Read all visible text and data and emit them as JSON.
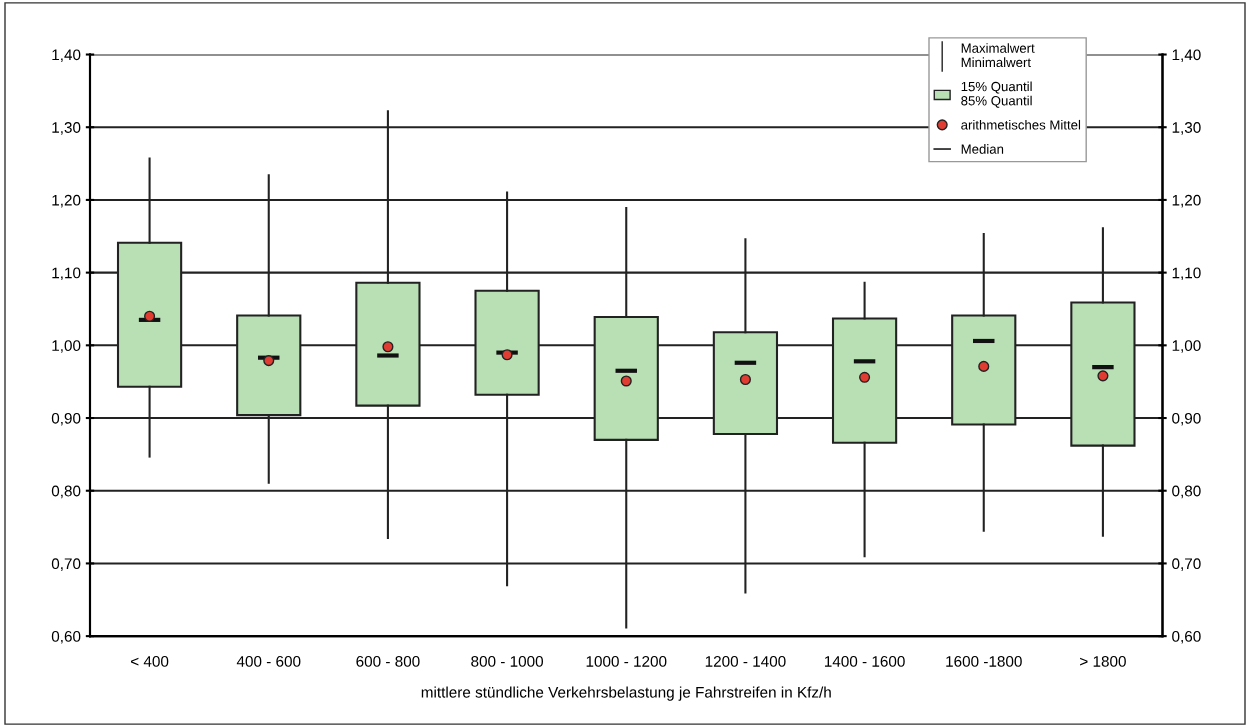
{
  "chart_data": {
    "type": "box",
    "xlabel": "mittlere stündliche Verkehrsbelastung je Fahrstreifen in Kfz/h",
    "categories": [
      "< 400",
      "400 - 600",
      "600 - 800",
      "800 - 1000",
      "1000 - 1200",
      "1200 - 1400",
      "1400 - 1600",
      "1600 -1800",
      "> 1800"
    ],
    "series": [
      {
        "color": "#b9dfb4",
        "boxes": [
          {
            "low": 0.847,
            "q1": 0.943,
            "median": 1.035,
            "q3": 1.141,
            "high": 1.257,
            "mean": 1.04
          },
          {
            "low": 0.811,
            "q1": 0.904,
            "median": 0.983,
            "q3": 1.041,
            "high": 1.234,
            "mean": 0.979
          },
          {
            "low": 0.735,
            "q1": 0.917,
            "median": 0.986,
            "q3": 1.086,
            "high": 1.322,
            "mean": 0.998
          },
          {
            "low": 0.67,
            "q1": 0.932,
            "median": 0.99,
            "q3": 1.075,
            "high": 1.21,
            "mean": 0.987
          },
          {
            "low": 0.612,
            "q1": 0.87,
            "median": 0.965,
            "q3": 1.039,
            "high": 1.189,
            "mean": 0.951
          },
          {
            "low": 0.66,
            "q1": 0.878,
            "median": 0.976,
            "q3": 1.018,
            "high": 1.146,
            "mean": 0.953
          },
          {
            "low": 0.71,
            "q1": 0.866,
            "median": 0.978,
            "q3": 1.037,
            "high": 1.086,
            "mean": 0.956
          },
          {
            "low": 0.745,
            "q1": 0.891,
            "median": 1.006,
            "q3": 1.041,
            "high": 1.153,
            "mean": 0.971
          },
          {
            "low": 0.738,
            "q1": 0.862,
            "median": 0.97,
            "q3": 1.059,
            "high": 1.161,
            "mean": 0.958
          }
        ]
      }
    ],
    "annotations": [
      "Maximalwert\nMinimalwert",
      "15% Quantil\n85% Quantil",
      "arithmetisches Mittel",
      "Median"
    ],
    "ylim": [
      0.6,
      1.4
    ],
    "yticks": [
      {
        "value": 0.6,
        "label": "0,60"
      },
      {
        "value": 0.7,
        "label": "0,70"
      },
      {
        "value": 0.8,
        "label": "0,80"
      },
      {
        "value": 0.9,
        "label": "0,90"
      },
      {
        "value": 1.0,
        "label": "1,00"
      },
      {
        "value": 1.1,
        "label": "1,10"
      },
      {
        "value": 1.2,
        "label": "1,20"
      },
      {
        "value": 1.3,
        "label": "1,30"
      },
      {
        "value": 1.4,
        "label": "1,40"
      }
    ],
    "y2lim": [
      0.6,
      1.4
    ],
    "y2ticks": [
      {
        "value": 0.6,
        "label": "0,60"
      },
      {
        "value": 0.7,
        "label": "0,70"
      },
      {
        "value": 0.8,
        "label": "0,80"
      },
      {
        "value": 0.9,
        "label": "0,90"
      },
      {
        "value": 1.0,
        "label": "1,00"
      },
      {
        "value": 1.1,
        "label": "1,10"
      },
      {
        "value": 1.2,
        "label": "1,20"
      },
      {
        "value": 1.3,
        "label": "1,30"
      },
      {
        "value": 1.4,
        "label": "1,40"
      }
    ],
    "grid": "y"
  }
}
